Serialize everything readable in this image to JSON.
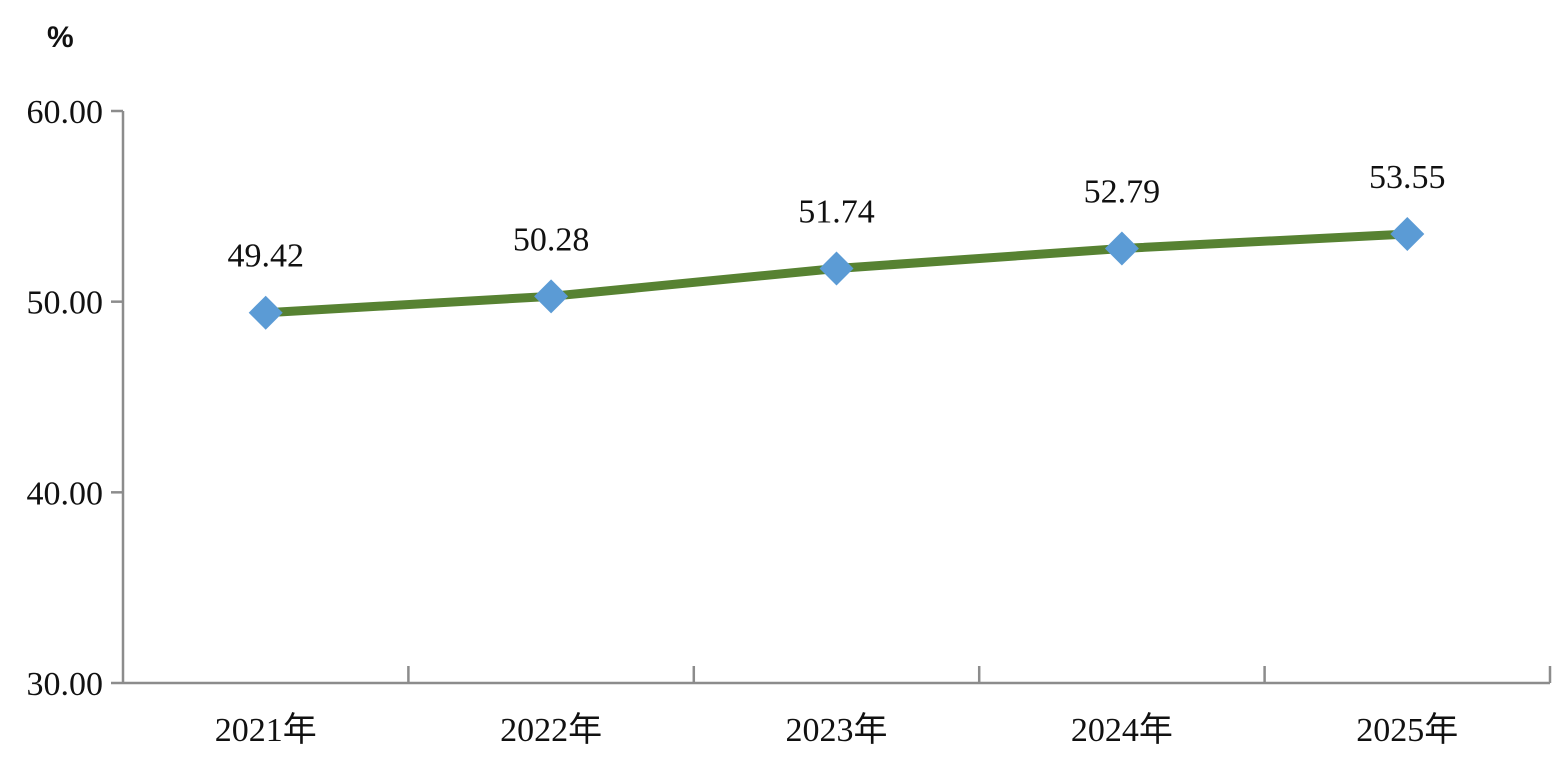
{
  "chart_data": {
    "type": "line",
    "title": "",
    "xlabel": "",
    "ylabel": "%",
    "categories": [
      "2021年",
      "2022年",
      "2023年",
      "2024年",
      "2025年"
    ],
    "series": [
      {
        "values": [
          49.42,
          50.28,
          51.74,
          52.79,
          53.55
        ],
        "data_labels": [
          "49.42",
          "50.28",
          "51.74",
          "52.79",
          "53.55"
        ]
      }
    ],
    "ylim": [
      30,
      60
    ],
    "yticks": [
      30,
      40,
      50,
      60
    ],
    "ytick_labels": [
      "30.00",
      "40.00",
      "50.00",
      "60.00"
    ],
    "grid": false,
    "legend": "none",
    "colors": {
      "line": "#578232",
      "marker": "#5b9bd5",
      "axis": "#8c8c8c"
    }
  }
}
